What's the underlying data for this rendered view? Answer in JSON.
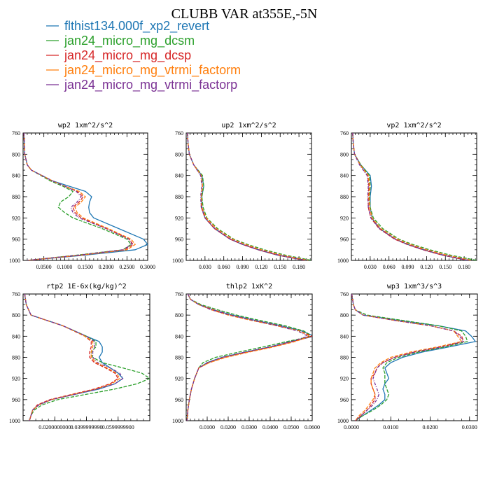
{
  "title": "CLUBB VAR at355E,-5N",
  "legend": [
    {
      "label": "flthist134.000f_xp2_revert",
      "color": "#1f77b4",
      "dash": ""
    },
    {
      "label": "jan24_micro_mg_dcsm",
      "color": "#2ca02c",
      "dash": "5,2"
    },
    {
      "label": "jan24_micro_mg_dcsp",
      "color": "#d62728",
      "dash": "5,2"
    },
    {
      "label": "jan24_micro_mg_vtrmi_factorm",
      "color": "#ff7f0e",
      "dash": "5,2"
    },
    {
      "label": "jan24_micro_mg_vtrmi_factorp",
      "color": "#7b3294",
      "dash": "4,2,1,2"
    }
  ],
  "chart_data": [
    {
      "type": "line",
      "title": "wp2  1xm^2/s^2",
      "xlim": [
        0.0,
        0.3
      ],
      "ylim": [
        760,
        1000
      ],
      "y_inverted": true,
      "xticks": [
        0.05,
        0.1,
        0.15,
        0.2,
        0.25,
        0.3
      ],
      "xtick_labels": [
        "0.0500",
        "0.1000",
        "0.1500",
        "0.2000",
        "0.2500",
        "0.3000"
      ],
      "yticks": [
        760,
        800,
        840,
        880,
        920,
        960,
        1000
      ],
      "y": [
        760,
        780,
        800,
        820,
        830,
        850,
        860,
        870,
        880,
        890,
        900,
        910,
        920,
        940,
        960,
        970,
        980,
        990,
        1000
      ],
      "series": [
        {
          "values": [
            0.002,
            0.003,
            0.004,
            0.01,
            0.02,
            0.07,
            0.11,
            0.15,
            0.165,
            0.16,
            0.158,
            0.16,
            0.17,
            0.23,
            0.29,
            0.3,
            0.27,
            0.15,
            0.01
          ]
        },
        {
          "values": [
            0.002,
            0.003,
            0.004,
            0.01,
            0.02,
            0.065,
            0.095,
            0.12,
            0.11,
            0.09,
            0.085,
            0.1,
            0.12,
            0.19,
            0.25,
            0.26,
            0.24,
            0.13,
            0.01
          ]
        },
        {
          "values": [
            0.002,
            0.003,
            0.004,
            0.01,
            0.02,
            0.07,
            0.1,
            0.13,
            0.145,
            0.135,
            0.12,
            0.125,
            0.14,
            0.2,
            0.255,
            0.265,
            0.245,
            0.14,
            0.01
          ]
        },
        {
          "values": [
            0.002,
            0.003,
            0.004,
            0.01,
            0.02,
            0.07,
            0.1,
            0.135,
            0.15,
            0.14,
            0.125,
            0.13,
            0.145,
            0.205,
            0.26,
            0.27,
            0.25,
            0.14,
            0.01
          ]
        },
        {
          "values": [
            0.002,
            0.003,
            0.004,
            0.01,
            0.02,
            0.07,
            0.1,
            0.128,
            0.14,
            0.13,
            0.115,
            0.12,
            0.135,
            0.2,
            0.255,
            0.262,
            0.24,
            0.135,
            0.01
          ]
        }
      ]
    },
    {
      "type": "line",
      "title": "up2  1xm^2/s^2",
      "xlim": [
        0.0,
        0.2
      ],
      "ylim": [
        760,
        1000
      ],
      "y_inverted": true,
      "xticks": [
        0.03,
        0.06,
        0.09,
        0.12,
        0.15,
        0.18
      ],
      "xtick_labels": [
        "0.030",
        "0.060",
        "0.090",
        "0.120",
        "0.150",
        "0.180"
      ],
      "yticks": [
        760,
        800,
        840,
        880,
        920,
        960,
        1000
      ],
      "y": [
        760,
        780,
        800,
        820,
        840,
        860,
        880,
        900,
        920,
        940,
        960,
        970,
        980,
        990,
        1000
      ],
      "series": [
        {
          "values": [
            0.002,
            0.003,
            0.005,
            0.012,
            0.025,
            0.028,
            0.025,
            0.025,
            0.03,
            0.045,
            0.07,
            0.09,
            0.115,
            0.145,
            0.19
          ]
        },
        {
          "values": [
            0.002,
            0.003,
            0.005,
            0.012,
            0.026,
            0.028,
            0.025,
            0.027,
            0.033,
            0.05,
            0.076,
            0.098,
            0.125,
            0.158,
            0.2
          ]
        },
        {
          "values": [
            0.002,
            0.003,
            0.005,
            0.012,
            0.024,
            0.026,
            0.024,
            0.024,
            0.03,
            0.045,
            0.07,
            0.09,
            0.115,
            0.146,
            0.19
          ]
        },
        {
          "values": [
            0.002,
            0.003,
            0.005,
            0.012,
            0.024,
            0.026,
            0.024,
            0.025,
            0.032,
            0.048,
            0.074,
            0.095,
            0.12,
            0.152,
            0.195
          ]
        },
        {
          "values": [
            0.002,
            0.003,
            0.005,
            0.012,
            0.023,
            0.025,
            0.023,
            0.024,
            0.03,
            0.046,
            0.071,
            0.091,
            0.116,
            0.148,
            0.192
          ]
        }
      ]
    },
    {
      "type": "line",
      "title": "vp2  1xm^2/s^2",
      "xlim": [
        0.0,
        0.2
      ],
      "ylim": [
        760,
        1000
      ],
      "y_inverted": true,
      "xticks": [
        0.03,
        0.06,
        0.09,
        0.12,
        0.15,
        0.18
      ],
      "xtick_labels": [
        "0.030",
        "0.060",
        "0.090",
        "0.120",
        "0.150",
        "0.180"
      ],
      "yticks": [
        760,
        800,
        840,
        880,
        920,
        960,
        1000
      ],
      "y": [
        760,
        780,
        800,
        820,
        840,
        860,
        880,
        900,
        920,
        940,
        960,
        970,
        980,
        990,
        1000
      ],
      "series": [
        {
          "values": [
            0.002,
            0.003,
            0.005,
            0.015,
            0.03,
            0.032,
            0.03,
            0.03,
            0.033,
            0.045,
            0.07,
            0.09,
            0.115,
            0.145,
            0.185
          ]
        },
        {
          "values": [
            0.002,
            0.003,
            0.005,
            0.015,
            0.029,
            0.03,
            0.029,
            0.03,
            0.035,
            0.05,
            0.076,
            0.098,
            0.125,
            0.158,
            0.2
          ]
        },
        {
          "values": [
            0.002,
            0.003,
            0.005,
            0.014,
            0.026,
            0.028,
            0.027,
            0.027,
            0.031,
            0.044,
            0.069,
            0.089,
            0.114,
            0.145,
            0.186
          ]
        },
        {
          "values": [
            0.002,
            0.003,
            0.005,
            0.014,
            0.027,
            0.029,
            0.028,
            0.029,
            0.033,
            0.047,
            0.073,
            0.094,
            0.12,
            0.152,
            0.192
          ]
        },
        {
          "values": [
            0.002,
            0.003,
            0.005,
            0.013,
            0.025,
            0.027,
            0.026,
            0.027,
            0.031,
            0.045,
            0.07,
            0.09,
            0.116,
            0.147,
            0.188
          ]
        }
      ]
    },
    {
      "type": "line",
      "title": "rtp2  1E-6x(kg/kg)^2",
      "xlim": [
        0.0,
        0.08
      ],
      "ylim": [
        760,
        1000
      ],
      "y_inverted": true,
      "xticks": [
        0.02,
        0.04,
        0.06
      ],
      "xtick_labels": [
        "0.0200000000",
        "0.0399999990",
        "0.0599999900"
      ],
      "yticks": [
        760,
        800,
        840,
        880,
        920,
        960,
        1000
      ],
      "y": [
        760,
        780,
        800,
        820,
        840,
        850,
        860,
        870,
        880,
        890,
        900,
        910,
        920,
        930,
        940,
        950,
        960,
        970,
        980,
        990,
        1000
      ],
      "series": [
        {
          "values": [
            0.001,
            0.002,
            0.005,
            0.025,
            0.04,
            0.048,
            0.05,
            0.05,
            0.048,
            0.05,
            0.055,
            0.06,
            0.063,
            0.058,
            0.048,
            0.033,
            0.018,
            0.01,
            0.006,
            0.005,
            0.004
          ]
        },
        {
          "values": [
            0.001,
            0.002,
            0.005,
            0.025,
            0.04,
            0.046,
            0.046,
            0.043,
            0.044,
            0.05,
            0.063,
            0.075,
            0.08,
            0.072,
            0.058,
            0.04,
            0.022,
            0.012,
            0.007,
            0.005,
            0.004
          ]
        },
        {
          "values": [
            0.001,
            0.002,
            0.005,
            0.025,
            0.039,
            0.043,
            0.043,
            0.042,
            0.042,
            0.045,
            0.052,
            0.058,
            0.06,
            0.055,
            0.045,
            0.031,
            0.017,
            0.009,
            0.006,
            0.005,
            0.004
          ]
        },
        {
          "values": [
            0.001,
            0.002,
            0.005,
            0.025,
            0.039,
            0.044,
            0.044,
            0.043,
            0.043,
            0.046,
            0.053,
            0.059,
            0.061,
            0.056,
            0.046,
            0.032,
            0.018,
            0.01,
            0.006,
            0.005,
            0.004
          ]
        },
        {
          "values": [
            0.001,
            0.002,
            0.005,
            0.025,
            0.04,
            0.045,
            0.045,
            0.044,
            0.044,
            0.047,
            0.055,
            0.061,
            0.063,
            0.058,
            0.047,
            0.033,
            0.018,
            0.01,
            0.006,
            0.005,
            0.004
          ]
        }
      ]
    },
    {
      "type": "line",
      "title": "thlp2  1xK^2",
      "xlim": [
        0.0,
        0.06
      ],
      "ylim": [
        760,
        1000
      ],
      "y_inverted": true,
      "xticks": [
        0.01,
        0.02,
        0.03,
        0.04,
        0.05,
        0.06
      ],
      "xtick_labels": [
        "0.0100",
        "0.0200",
        "0.0300",
        "0.0400",
        "0.0500",
        "0.0600"
      ],
      "yticks": [
        760,
        800,
        840,
        880,
        920,
        960,
        1000
      ],
      "y": [
        760,
        770,
        780,
        790,
        800,
        810,
        820,
        830,
        840,
        850,
        860,
        870,
        880,
        890,
        900,
        920,
        940,
        960,
        980,
        1000
      ],
      "series": [
        {
          "values": [
            0.0008,
            0.002,
            0.006,
            0.013,
            0.022,
            0.033,
            0.045,
            0.055,
            0.061,
            0.05,
            0.04,
            0.028,
            0.017,
            0.01,
            0.006,
            0.004,
            0.0025,
            0.0015,
            0.0008,
            0.0004
          ]
        },
        {
          "values": [
            0.0008,
            0.002,
            0.007,
            0.015,
            0.024,
            0.035,
            0.047,
            0.056,
            0.06,
            0.048,
            0.037,
            0.025,
            0.014,
            0.008,
            0.006,
            0.004,
            0.0025,
            0.0015,
            0.0008,
            0.0004
          ]
        },
        {
          "values": [
            0.0008,
            0.002,
            0.006,
            0.013,
            0.021,
            0.032,
            0.044,
            0.054,
            0.06,
            0.051,
            0.041,
            0.029,
            0.018,
            0.011,
            0.006,
            0.004,
            0.0025,
            0.0015,
            0.0008,
            0.0004
          ]
        },
        {
          "values": [
            0.0008,
            0.002,
            0.006,
            0.012,
            0.02,
            0.031,
            0.043,
            0.054,
            0.059,
            0.052,
            0.042,
            0.03,
            0.019,
            0.011,
            0.006,
            0.004,
            0.0025,
            0.0015,
            0.0008,
            0.0004
          ]
        },
        {
          "values": [
            0.0008,
            0.002,
            0.006,
            0.012,
            0.021,
            0.032,
            0.043,
            0.053,
            0.058,
            0.05,
            0.04,
            0.028,
            0.017,
            0.01,
            0.006,
            0.004,
            0.0025,
            0.0015,
            0.0008,
            0.0004
          ]
        }
      ]
    },
    {
      "type": "line",
      "title": "wp3  1xm^3/s^3",
      "xlim": [
        0.0,
        0.032
      ],
      "ylim": [
        760,
        1000
      ],
      "y_inverted": true,
      "xticks": [
        0.0,
        0.01,
        0.02,
        0.03
      ],
      "xtick_labels": [
        "0.0000",
        "0.0100",
        "0.0200",
        "0.0300"
      ],
      "yticks": [
        760,
        800,
        840,
        880,
        920,
        960,
        1000
      ],
      "y": [
        760,
        780,
        790,
        800,
        810,
        820,
        830,
        840,
        850,
        860,
        870,
        880,
        890,
        900,
        910,
        920,
        930,
        940,
        950,
        960,
        970,
        980,
        990,
        1000
      ],
      "series": [
        {
          "values": [
            0.0001,
            0.0005,
            0.001,
            0.003,
            0.012,
            0.022,
            0.029,
            0.0305,
            0.0315,
            0.025,
            0.018,
            0.013,
            0.01,
            0.0085,
            0.009,
            0.0095,
            0.0085,
            0.008,
            0.0085,
            0.0085,
            0.007,
            0.005,
            0.003,
            0.001
          ]
        },
        {
          "values": [
            0.0001,
            0.0005,
            0.001,
            0.004,
            0.013,
            0.022,
            0.028,
            0.029,
            0.0295,
            0.024,
            0.017,
            0.012,
            0.009,
            0.008,
            0.0085,
            0.0085,
            0.0085,
            0.009,
            0.0095,
            0.009,
            0.0075,
            0.0055,
            0.003,
            0.001
          ]
        },
        {
          "values": [
            0.0001,
            0.0005,
            0.001,
            0.003,
            0.011,
            0.02,
            0.026,
            0.028,
            0.0285,
            0.023,
            0.016,
            0.011,
            0.008,
            0.0065,
            0.006,
            0.005,
            0.005,
            0.0055,
            0.006,
            0.006,
            0.005,
            0.004,
            0.0025,
            0.001
          ]
        },
        {
          "values": [
            0.0001,
            0.0005,
            0.001,
            0.003,
            0.011,
            0.02,
            0.026,
            0.027,
            0.028,
            0.022,
            0.015,
            0.01,
            0.0075,
            0.006,
            0.0055,
            0.005,
            0.005,
            0.0055,
            0.006,
            0.0055,
            0.0045,
            0.0035,
            0.002,
            0.001
          ]
        },
        {
          "values": [
            0.0001,
            0.0005,
            0.001,
            0.003,
            0.011,
            0.02,
            0.026,
            0.0275,
            0.0285,
            0.023,
            0.016,
            0.011,
            0.008,
            0.0065,
            0.006,
            0.0055,
            0.006,
            0.0065,
            0.007,
            0.0065,
            0.0055,
            0.004,
            0.0025,
            0.001
          ]
        }
      ]
    }
  ]
}
